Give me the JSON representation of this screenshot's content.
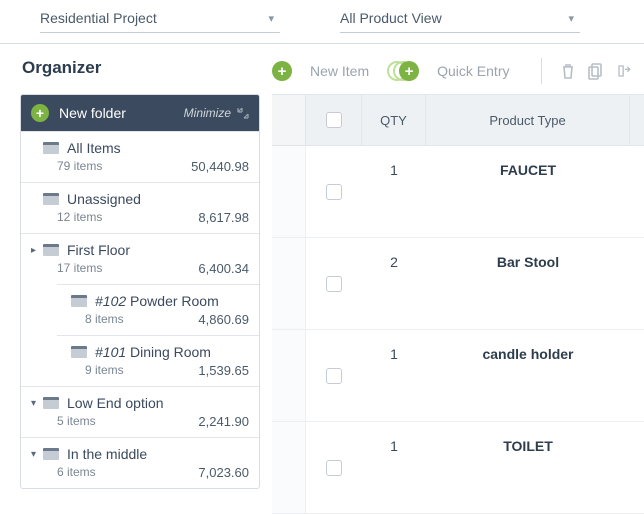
{
  "topbar": {
    "project_dropdown": "Residential Project",
    "view_dropdown": "All Product View"
  },
  "organizer": {
    "title": "Organizer",
    "new_folder_label": "New folder",
    "minimize_label": "Minimize",
    "folders": [
      {
        "label": "All Items",
        "count_text": "79 items",
        "amount": "50,440.98",
        "level": 0,
        "expand": ""
      },
      {
        "label": "Unassigned",
        "count_text": "12 items",
        "amount": "8,617.98",
        "level": 0,
        "expand": ""
      },
      {
        "label": "First Floor",
        "count_text": "17 items",
        "amount": "6,400.34",
        "level": 0,
        "expand": "right"
      },
      {
        "label_prefix": "#102",
        "label": "Powder Room",
        "count_text": "8 items",
        "amount": "4,860.69",
        "level": 2,
        "expand": ""
      },
      {
        "label_prefix": "#101",
        "label": "Dining Room",
        "count_text": "9 items",
        "amount": "1,539.65",
        "level": 2,
        "expand": ""
      },
      {
        "label": "Low End option",
        "count_text": "5 items",
        "amount": "2,241.90",
        "level": 0,
        "expand": "down"
      },
      {
        "label": "In the middle",
        "count_text": "6 items",
        "amount": "7,023.60",
        "level": 0,
        "expand": "down"
      }
    ]
  },
  "toolbar": {
    "new_item_label": "New Item",
    "quick_entry_label": "Quick Entry"
  },
  "grid": {
    "headers": {
      "qty": "QTY",
      "product_type": "Product Type"
    },
    "rows": [
      {
        "qty": "1",
        "product": "FAUCET"
      },
      {
        "qty": "2",
        "product": "Bar Stool"
      },
      {
        "qty": "1",
        "product": "candle holder"
      },
      {
        "qty": "1",
        "product": "TOILET"
      }
    ]
  },
  "colors": {
    "accent_green": "#7cb342",
    "header_dark": "#3b4a5e",
    "border": "#d8dde2"
  }
}
